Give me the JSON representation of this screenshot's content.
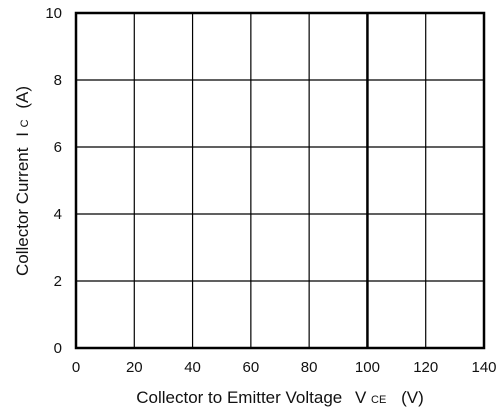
{
  "chart_data": {
    "type": "line",
    "title": "",
    "xlabel": "Collector to Emitter Voltage",
    "xlabel_symbol": "V",
    "xlabel_symbol_sub": "CE",
    "xlabel_unit": "(V)",
    "ylabel": "Collector Current",
    "ylabel_symbol": "I",
    "ylabel_symbol_sub": "C",
    "ylabel_unit": "(A)",
    "xlim": [
      0,
      140
    ],
    "ylim": [
      0,
      10
    ],
    "xticks": [
      0,
      20,
      40,
      60,
      80,
      100,
      120,
      140
    ],
    "yticks": [
      0,
      2,
      4,
      6,
      8,
      10
    ],
    "xtick_labels": [
      "0",
      "20",
      "40",
      "60",
      "80",
      "100",
      "120",
      "140"
    ],
    "ytick_labels": [
      "0",
      "2",
      "4",
      "6",
      "8",
      "10"
    ],
    "grid": true,
    "legend": "none",
    "series": []
  }
}
